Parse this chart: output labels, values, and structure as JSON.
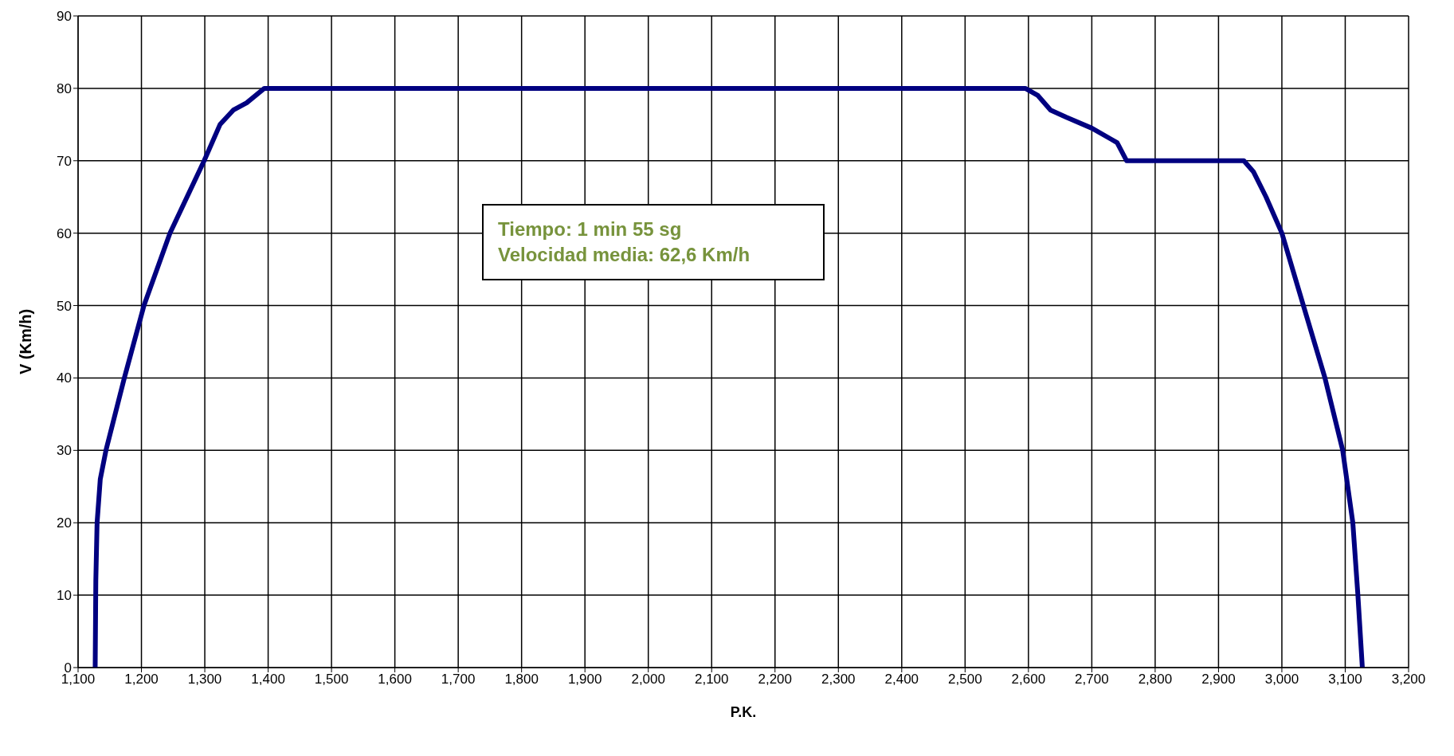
{
  "chart_data": {
    "type": "line",
    "xlabel": "P.K.",
    "ylabel": "V (Km/h)",
    "annotations": [
      "Tiempo: 1 min 55 sg",
      "Velocidad media: 62,6 Km/h"
    ],
    "x": [
      1127,
      1128,
      1130,
      1135,
      1144,
      1173,
      1204,
      1245,
      1299,
      1324,
      1345,
      1366,
      1394,
      1405,
      1430,
      2585,
      2595,
      2615,
      2635,
      2660,
      2700,
      2730,
      2740,
      2755,
      2765,
      2780,
      2930,
      2940,
      2955,
      2975,
      3000,
      3034,
      3068,
      3096,
      3112,
      3120,
      3127
    ],
    "series": [
      {
        "color": "#000080",
        "values": [
          0,
          12,
          20,
          26,
          30,
          40,
          50,
          60,
          70,
          75,
          77,
          78,
          80,
          80,
          80,
          80,
          80,
          79,
          77,
          76,
          74.5,
          73,
          72.5,
          70,
          70,
          70,
          70,
          70,
          68.5,
          65,
          60,
          50,
          40,
          30,
          20,
          10,
          0
        ]
      }
    ],
    "xlim": [
      1100,
      3200
    ],
    "xticks": [
      {
        "value": 1100,
        "label": "1,100"
      },
      {
        "value": 1200,
        "label": "1,200"
      },
      {
        "value": 1300,
        "label": "1,300"
      },
      {
        "value": 1400,
        "label": "1,400"
      },
      {
        "value": 1500,
        "label": "1,500"
      },
      {
        "value": 1600,
        "label": "1,600"
      },
      {
        "value": 1700,
        "label": "1,700"
      },
      {
        "value": 1800,
        "label": "1,800"
      },
      {
        "value": 1900,
        "label": "1,900"
      },
      {
        "value": 2000,
        "label": "2,000"
      },
      {
        "value": 2100,
        "label": "2,100"
      },
      {
        "value": 2200,
        "label": "2,200"
      },
      {
        "value": 2300,
        "label": "2,300"
      },
      {
        "value": 2400,
        "label": "2,400"
      },
      {
        "value": 2500,
        "label": "2,500"
      },
      {
        "value": 2600,
        "label": "2,600"
      },
      {
        "value": 2700,
        "label": "2,700"
      },
      {
        "value": 2800,
        "label": "2,800"
      },
      {
        "value": 2900,
        "label": "2,900"
      },
      {
        "value": 3000,
        "label": "3,000"
      },
      {
        "value": 3100,
        "label": "3,100"
      },
      {
        "value": 3200,
        "label": "3,200"
      }
    ],
    "ylim": [
      0,
      90
    ],
    "yticks": [
      0,
      10,
      20,
      30,
      40,
      50,
      60,
      70,
      80,
      90
    ],
    "grid": true,
    "marker": "none",
    "line_style": "solid"
  }
}
